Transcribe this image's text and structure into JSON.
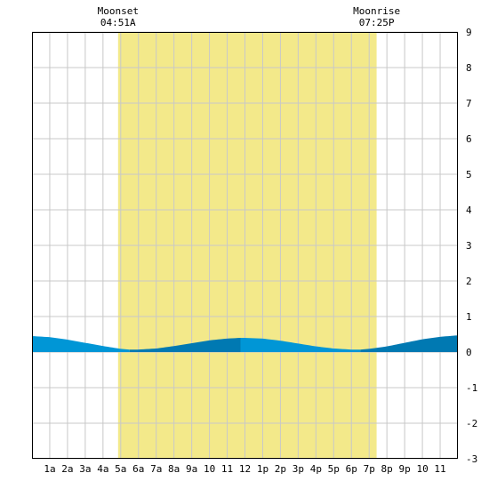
{
  "moon_events": [
    {
      "label": "Moonset",
      "time": "04:51A",
      "hour": 4.85
    },
    {
      "label": "Moonrise",
      "time": "07:25P",
      "hour": 19.42
    }
  ],
  "colors": {
    "daylight": "#f3e98a",
    "grid": "#c8c8c8",
    "tide_light": "#0096d6",
    "tide_dark": "#0079b2",
    "frame": "#000000"
  },
  "chart_data": {
    "type": "area",
    "daylight": {
      "start_hour": 4.85,
      "end_hour": 19.42
    },
    "x_labels": [
      "1a",
      "2a",
      "3a",
      "4a",
      "5a",
      "6a",
      "7a",
      "8a",
      "9a",
      "10",
      "11",
      "12",
      "1p",
      "2p",
      "3p",
      "4p",
      "5p",
      "6p",
      "7p",
      "8p",
      "9p",
      "10",
      "11"
    ],
    "x_hours": [
      1,
      2,
      3,
      4,
      5,
      6,
      7,
      8,
      9,
      10,
      11,
      12,
      13,
      14,
      15,
      16,
      17,
      18,
      19,
      20,
      21,
      22,
      23
    ],
    "xlim": [
      0,
      24
    ],
    "ylim": [
      -3,
      9
    ],
    "y_ticks": [
      9,
      8,
      7,
      6,
      5,
      4,
      3,
      2,
      1,
      0,
      -1,
      -2,
      -3
    ],
    "series": [
      {
        "x": [
          0,
          1,
          2,
          3,
          4,
          5,
          5.5,
          6,
          7,
          8,
          9,
          10,
          11,
          11.75,
          12,
          13,
          14,
          15,
          16,
          17,
          18,
          18.5,
          19,
          20,
          21,
          22,
          23,
          24
        ],
        "y": [
          0.45,
          0.42,
          0.35,
          0.26,
          0.17,
          0.09,
          0.07,
          0.07,
          0.1,
          0.17,
          0.25,
          0.33,
          0.38,
          0.4,
          0.4,
          0.38,
          0.32,
          0.24,
          0.16,
          0.1,
          0.07,
          0.07,
          0.09,
          0.16,
          0.26,
          0.36,
          0.43,
          0.47
        ]
      }
    ],
    "shade_bands": [
      {
        "from": 0,
        "to": 5.5,
        "shade": "light"
      },
      {
        "from": 5.5,
        "to": 11.75,
        "shade": "dark"
      },
      {
        "from": 11.75,
        "to": 18.5,
        "shade": "light"
      },
      {
        "from": 18.5,
        "to": 24,
        "shade": "dark"
      }
    ]
  }
}
